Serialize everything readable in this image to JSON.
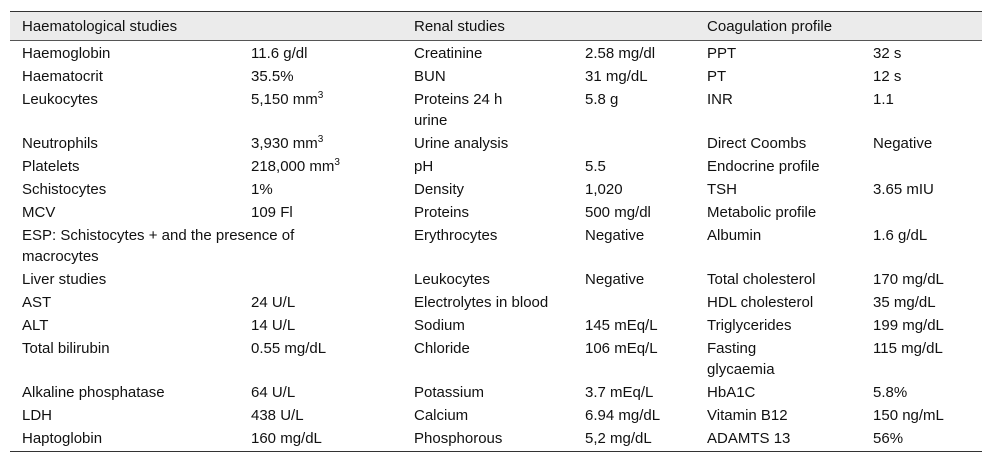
{
  "table": {
    "header": [
      "Haematological studies",
      "Renal studies",
      "Coagulation profile"
    ],
    "rows": [
      [
        "Haemoglobin",
        "11.6 g/dl",
        "Creatinine",
        "2.58 mg/dl",
        "PPT",
        "32 s"
      ],
      [
        "Haematocrit",
        "35.5%",
        "BUN",
        "31 mg/dL",
        "PT",
        "12 s"
      ],
      [
        "Leukocytes",
        {
          "text": "5,150 mm",
          "sup": "3"
        },
        "Proteins 24 h urine",
        "5.8 g",
        "INR",
        "1.1"
      ],
      [
        "Neutrophils",
        {
          "text": "3,930 mm",
          "sup": "3"
        },
        "Urine analysis",
        null,
        "Direct Coombs",
        "Negative"
      ],
      [
        "Platelets",
        {
          "text": "218,000 mm",
          "sup": "3"
        },
        "pH",
        "5.5",
        "Endocrine profile",
        null
      ],
      [
        "Schistocytes",
        "1%",
        "Density",
        "1,020",
        "TSH",
        "3.65 mIU"
      ],
      [
        "MCV",
        "109 Fl",
        "Proteins",
        "500 mg/dl",
        "Metabolic profile",
        null
      ],
      [
        "ESP: Schistocytes + and the presence of macrocytes",
        null,
        "Erythrocytes",
        "Negative",
        "Albumin",
        "1.6 g/dL"
      ],
      [
        "Liver studies",
        null,
        "Leukocytes",
        "Negative",
        "Total cholesterol",
        "170 mg/dL"
      ],
      [
        "AST",
        "24 U/L",
        "Electrolytes in blood",
        null,
        "HDL cholesterol",
        "35 mg/dL"
      ],
      [
        "ALT",
        "14 U/L",
        "Sodium",
        "145 mEq/L",
        "Triglycerides",
        "199 mg/dL"
      ],
      [
        "Total bilirubin",
        "0.55 mg/dL",
        "Chloride",
        "106 mEq/L",
        "Fasting glycaemia",
        "115 mg/dL"
      ],
      [
        "Alkaline phosphatase",
        "64 U/L",
        "Potassium",
        "3.7 mEq/L",
        "HbA1C",
        "5.8%"
      ],
      [
        "LDH",
        "438 U/L",
        "Calcium",
        "6.94 mg/dL",
        "Vitamin B12",
        "150 ng/mL"
      ],
      [
        "Haptoglobin",
        "160 mg/dL",
        "Phosphorous",
        "5,2 mg/dL",
        "ADAMTS 13",
        "56%"
      ]
    ]
  }
}
